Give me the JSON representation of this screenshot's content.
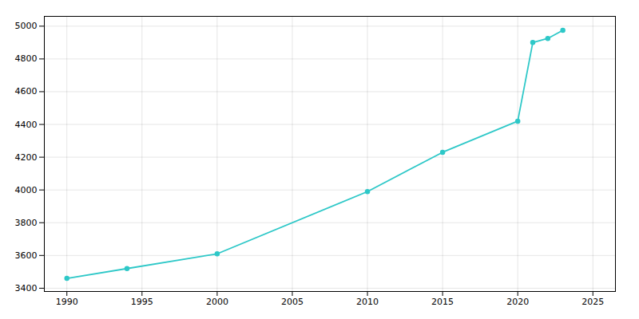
{
  "chart_data": {
    "type": "line",
    "x": [
      1990,
      1994,
      2000,
      2010,
      2015,
      2020,
      2021,
      2022,
      2023
    ],
    "values": [
      3460,
      3520,
      3610,
      3990,
      4230,
      4420,
      4900,
      4925,
      4975
    ],
    "color": "#2ec8c8",
    "marker": "circle",
    "xlim": [
      1988.5,
      2026.5
    ],
    "ylim": [
      3380,
      5060
    ],
    "xticks": [
      1990,
      1995,
      2000,
      2005,
      2010,
      2015,
      2020,
      2025
    ],
    "yticks": [
      3400,
      3600,
      3800,
      4000,
      4200,
      4400,
      4600,
      4800,
      5000
    ],
    "grid": true
  }
}
